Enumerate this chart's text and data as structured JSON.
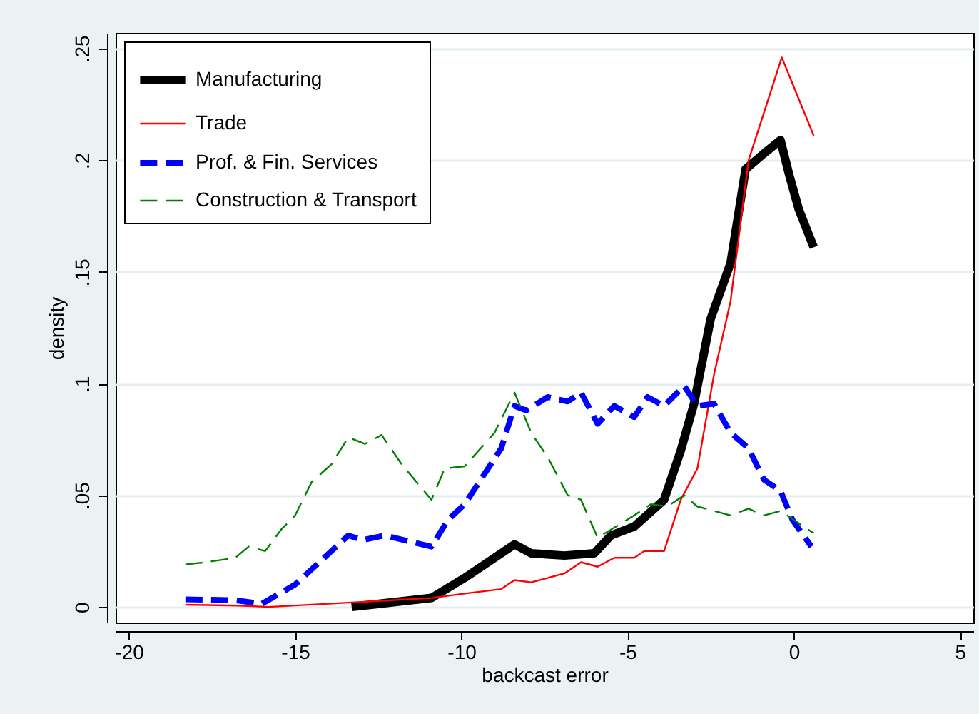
{
  "chart_data": {
    "type": "line",
    "xlabel": "backcast error",
    "ylabel": "density",
    "xlim": [
      -20.4,
      5.4
    ],
    "ylim": [
      -0.007,
      0.257
    ],
    "xticks": [
      -20,
      -15,
      -10,
      -5,
      0,
      5
    ],
    "yticks": [
      0,
      {
        "value": 0.05,
        "label": ".05"
      },
      {
        "value": 0.1,
        "label": ".1"
      },
      {
        "value": 0.15,
        "label": ".15"
      },
      {
        "value": 0.2,
        "label": ".2"
      },
      {
        "value": 0.25,
        "label": ".25"
      }
    ],
    "grid": "y",
    "legend": "top left",
    "series": [
      {
        "name": "Manufacturing",
        "color": "#000000",
        "line_style": "solid",
        "x": [
          -13.3,
          -10.9,
          -9.9,
          -8.4,
          -7.9,
          -6.9,
          -6.0,
          -5.5,
          -4.8,
          -3.9,
          -3.4,
          -3.0,
          -2.5,
          -1.9,
          -1.45,
          -0.9,
          -0.4,
          -0.13,
          0.15,
          0.6
        ],
        "values": [
          0,
          0.004,
          0.013,
          0.028,
          0.024,
          0.023,
          0.024,
          0.032,
          0.036,
          0.048,
          0.07,
          0.091,
          0.129,
          0.154,
          0.196,
          0.203,
          0.209,
          0.193,
          0.178,
          0.161
        ]
      },
      {
        "name": "Trade",
        "color": "#ff0000",
        "line_style": "solid",
        "x": [
          -18.3,
          -16.7,
          -15.8,
          -13.3,
          -10.9,
          -9.9,
          -8.8,
          -8.4,
          -7.9,
          -6.9,
          -6.4,
          -5.9,
          -5.4,
          -4.8,
          -4.5,
          -3.9,
          -3.4,
          -2.9,
          -2.4,
          -1.9,
          -1.36,
          -0.36,
          0.6
        ],
        "values": [
          0.001,
          0.0006,
          0,
          0.002,
          0.004,
          0.006,
          0.008,
          0.012,
          0.011,
          0.015,
          0.02,
          0.018,
          0.022,
          0.022,
          0.025,
          0.025,
          0.048,
          0.062,
          0.104,
          0.137,
          0.2,
          0.246,
          0.211
        ]
      },
      {
        "name": "Prof. & Fin. Services",
        "color": "#0000ff",
        "line_style": "dashed",
        "x": [
          -18.3,
          -16.8,
          -16.0,
          -15.0,
          -13.4,
          -12.96,
          -12.3,
          -10.9,
          -10.4,
          -9.9,
          -8.8,
          -8.4,
          -8.05,
          -7.4,
          -6.8,
          -6.4,
          -5.9,
          -5.4,
          -4.8,
          -4.4,
          -3.9,
          -3.3,
          -2.9,
          -2.4,
          -1.9,
          -1.36,
          -0.9,
          -0.4,
          -0.04,
          0.53
        ],
        "values": [
          0.0034,
          0.003,
          0.0014,
          0.01,
          0.032,
          0.03,
          0.032,
          0.027,
          0.039,
          0.046,
          0.071,
          0.09,
          0.088,
          0.094,
          0.092,
          0.096,
          0.082,
          0.09,
          0.085,
          0.094,
          0.09,
          0.099,
          0.09,
          0.091,
          0.078,
          0.071,
          0.057,
          0.052,
          0.039,
          0.027
        ]
      },
      {
        "name": "Construction & Transport",
        "color": "#008000",
        "line_style": "dashed",
        "x": [
          -18.3,
          -17.7,
          -16.8,
          -16.4,
          -15.9,
          -15.4,
          -15.0,
          -14.5,
          -13.9,
          -13.4,
          -12.9,
          -12.4,
          -11.8,
          -10.9,
          -10.5,
          -9.9,
          -9.0,
          -8.4,
          -7.9,
          -7.4,
          -6.8,
          -6.4,
          -5.9,
          -4.8,
          -4.3,
          -3.8,
          -3.3,
          -2.9,
          -2.4,
          -1.9,
          -1.36,
          -0.9,
          -0.4,
          0.6
        ],
        "values": [
          0.019,
          0.02,
          0.022,
          0.027,
          0.025,
          0.035,
          0.041,
          0.056,
          0.064,
          0.076,
          0.073,
          0.077,
          0.064,
          0.048,
          0.062,
          0.063,
          0.078,
          0.096,
          0.078,
          0.067,
          0.05,
          0.048,
          0.031,
          0.041,
          0.046,
          0.045,
          0.05,
          0.045,
          0.043,
          0.041,
          0.044,
          0.041,
          0.043,
          0.033
        ]
      }
    ]
  }
}
